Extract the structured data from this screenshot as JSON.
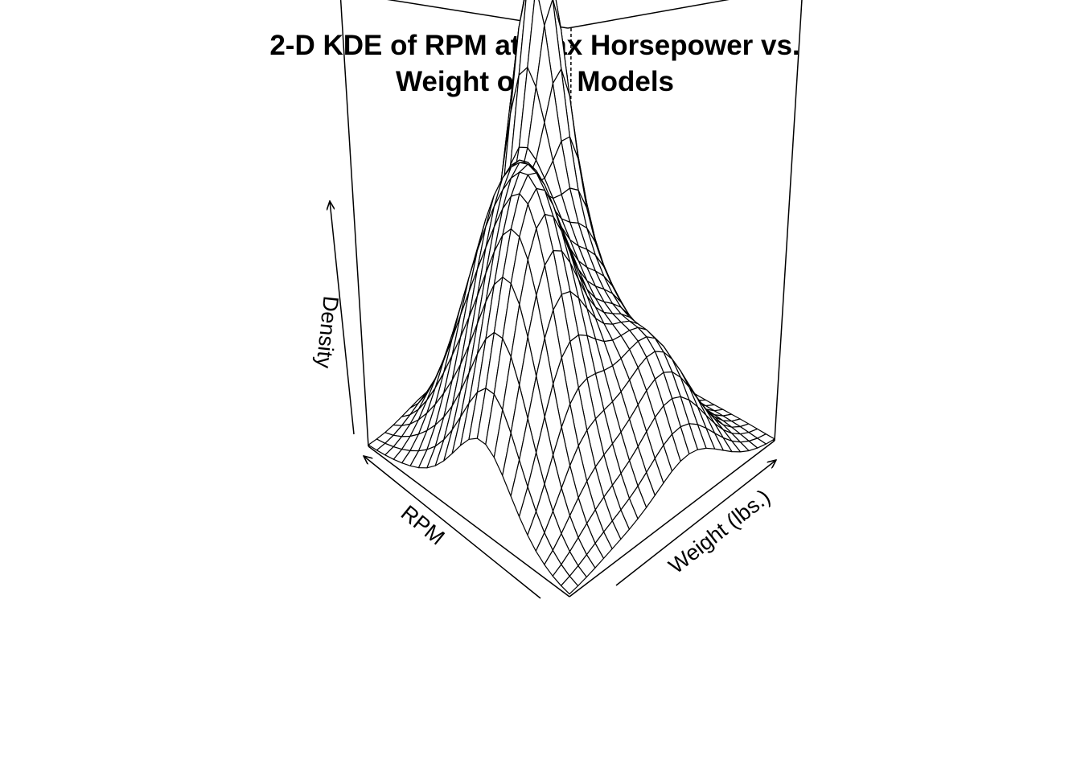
{
  "chart_data": {
    "type": "surface",
    "title": "2-D KDE of RPM at Max Horsepower vs. Weight of '93 Models",
    "title_lines": [
      "2-D KDE of RPM at Max Horsepower vs.",
      "Weight of '93 Models"
    ],
    "xlabel": "RPM",
    "ylabel": "Weight (lbs.)",
    "zlabel": "Density",
    "grid_size": [
      25,
      25
    ],
    "ticks": false,
    "box": true,
    "line_color": "#000000",
    "fill_color": "#ffffff",
    "peaks": [
      {
        "rpm_frac": 0.21,
        "weight_frac": 0.63,
        "height_frac": 1.0,
        "spread_x": 0.11,
        "spread_y": 0.09
      },
      {
        "rpm_frac": 0.34,
        "weight_frac": 0.33,
        "height_frac": 0.56,
        "spread_x": 0.16,
        "spread_y": 0.14
      },
      {
        "rpm_frac": 0.62,
        "weight_frac": 0.25,
        "height_frac": 0.55,
        "spread_x": 0.16,
        "spread_y": 0.14
      },
      {
        "rpm_frac": 0.82,
        "weight_frac": 0.58,
        "height_frac": 0.3,
        "spread_x": 0.14,
        "spread_y": 0.16
      },
      {
        "rpm_frac": 0.45,
        "weight_frac": 0.62,
        "height_frac": 0.4,
        "spread_x": 0.18,
        "spread_y": 0.16
      },
      {
        "rpm_frac": 0.1,
        "weight_frac": 0.85,
        "height_frac": 0.36,
        "spread_x": 0.1,
        "spread_y": 0.1
      },
      {
        "rpm_frac": 0.55,
        "weight_frac": 0.12,
        "height_frac": 0.2,
        "spread_x": 0.12,
        "spread_y": 0.12
      }
    ]
  }
}
